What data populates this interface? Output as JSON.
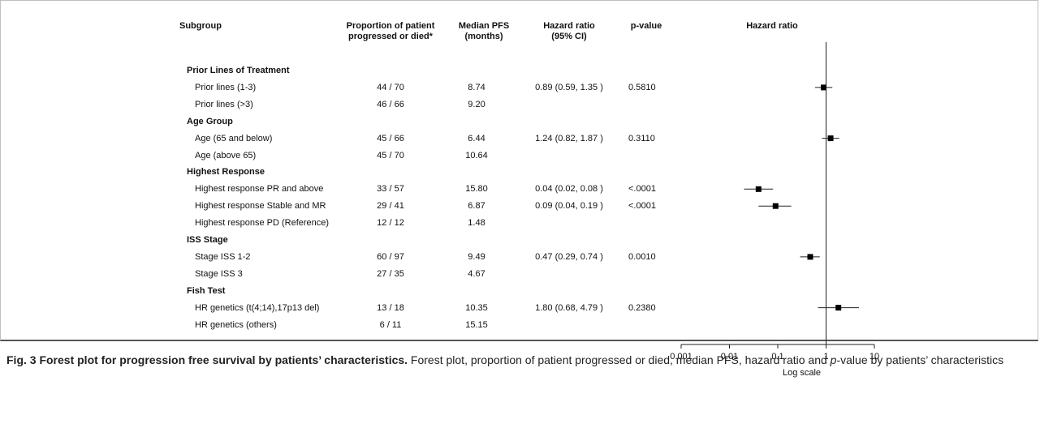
{
  "headers": {
    "subgroup": "Subgroup",
    "proportion_line1": "Proportion of patient",
    "proportion_line2": "progressed or died*",
    "median_line1": "Median PFS",
    "median_line2": "(months)",
    "hr_line1": "Hazard ratio",
    "hr_line2": "(95% CI)",
    "pvalue": "p-value",
    "plot": "Hazard ratio"
  },
  "rows": [
    {
      "label": "Prior Lines of Treatment",
      "group": true
    },
    {
      "label": "Prior lines (1-3)",
      "proportion": "44 / 70",
      "median": "8.74",
      "hr_text": "0.89 (0.59,  1.35 )",
      "pvalue": "0.5810"
    },
    {
      "label": "Prior lines (>3)",
      "proportion": "46 / 66",
      "median": "9.20"
    },
    {
      "label": "Age Group",
      "group": true
    },
    {
      "label": "Age (65 and below)",
      "proportion": "45 / 66",
      "median": "6.44",
      "hr_text": "1.24 (0.82,  1.87 )",
      "pvalue": "0.3110"
    },
    {
      "label": "Age (above 65)",
      "proportion": "45 / 70",
      "median": "10.64"
    },
    {
      "label": "Highest Response",
      "group": true
    },
    {
      "label": "Highest response PR and above",
      "proportion": "33 / 57",
      "median": "15.80",
      "hr_text": "0.04 (0.02,  0.08 )",
      "pvalue": "<.0001"
    },
    {
      "label": "Highest response Stable and MR",
      "proportion": "29 / 41",
      "median": "6.87",
      "hr_text": "0.09 (0.04,  0.19 )",
      "pvalue": "<.0001"
    },
    {
      "label": "Highest response PD (Reference)",
      "proportion": "12 / 12",
      "median": "1.48"
    },
    {
      "label": "ISS Stage",
      "group": true
    },
    {
      "label": "Stage ISS 1-2",
      "proportion": "60 / 97",
      "median": "9.49",
      "hr_text": "0.47 (0.29,  0.74 )",
      "pvalue": "0.0010"
    },
    {
      "label": "Stage ISS 3",
      "proportion": "27 / 35",
      "median": "4.67"
    },
    {
      "label": "Fish Test",
      "group": true
    },
    {
      "label": "HR genetics (t(4;14),17p13 del)",
      "proportion": "13 / 18",
      "median": "10.35",
      "hr_text": "1.80 (0.68,  4.79 )",
      "pvalue": "0.2380"
    },
    {
      "label": "HR genetics (others)",
      "proportion": "6 / 11",
      "median": "15.15"
    }
  ],
  "chart_data": {
    "type": "forest",
    "scale": "log",
    "xlabel": "Log scale",
    "xlim": [
      0.001,
      10
    ],
    "xticks": [
      0.001,
      0.01,
      0.1,
      1,
      10
    ],
    "xtick_labels": [
      "0.001",
      "0.01",
      "0.1",
      "1",
      "10"
    ],
    "reference_line": 1,
    "points": [
      {
        "row": 1,
        "hr": 0.89,
        "lower": 0.59,
        "upper": 1.35
      },
      {
        "row": 4,
        "hr": 1.24,
        "lower": 0.82,
        "upper": 1.87
      },
      {
        "row": 7,
        "hr": 0.04,
        "lower": 0.02,
        "upper": 0.08
      },
      {
        "row": 8,
        "hr": 0.09,
        "lower": 0.04,
        "upper": 0.19
      },
      {
        "row": 11,
        "hr": 0.47,
        "lower": 0.29,
        "upper": 0.74
      },
      {
        "row": 14,
        "hr": 1.8,
        "lower": 0.68,
        "upper": 4.79
      }
    ]
  },
  "caption": {
    "title": "Fig. 3 Forest plot for progression free survival by patients’ characteristics.",
    "text_before": " Forest plot, proportion of patient progressed or died, median PFS, hazard ratio and ",
    "italic": "p",
    "text_after": "-value by patients’ characteristics"
  }
}
